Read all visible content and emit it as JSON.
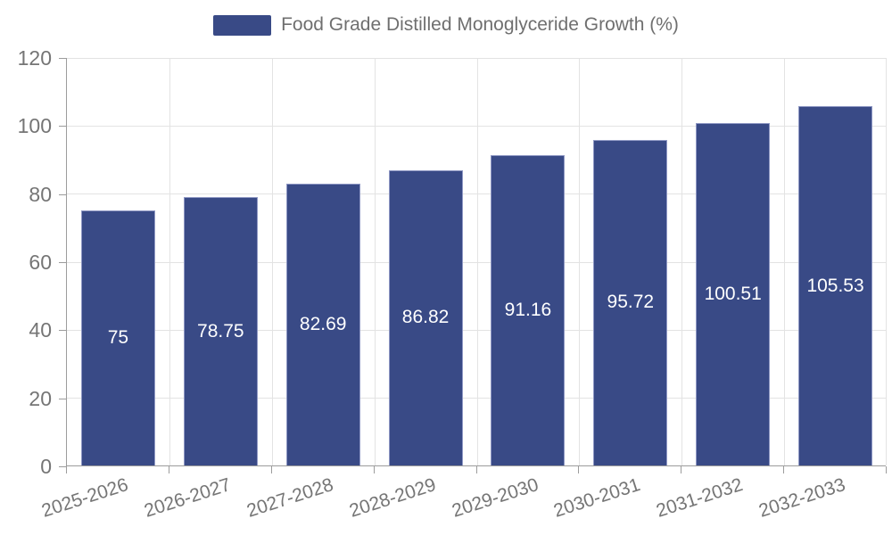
{
  "chart_data": {
    "type": "bar",
    "title": "Food Grade Distilled Monoglyceride Growth (%)",
    "legend": {
      "label": "Food Grade Distilled Monoglyceride Growth (%)",
      "position": "top"
    },
    "categories": [
      "2025-2026",
      "2026-2027",
      "2027-2028",
      "2028-2029",
      "2029-2030",
      "2030-2031",
      "2031-2032",
      "2032-2033"
    ],
    "values": [
      75,
      78.75,
      82.69,
      86.82,
      91.16,
      95.72,
      100.51,
      105.53
    ],
    "value_labels": [
      "75",
      "78.75",
      "82.69",
      "86.82",
      "91.16",
      "95.72",
      "100.51",
      "105.53"
    ],
    "xlabel": "",
    "ylabel": "",
    "ylim": [
      0,
      120
    ],
    "yticks": [
      0,
      20,
      40,
      60,
      80,
      100,
      120
    ],
    "grid": true,
    "colors": {
      "bar": "#394a86",
      "bar_border": "#8f98c4",
      "value_label": "#ffffff",
      "axis": "#9c9c9c",
      "gridline": "#e3e3e3",
      "tick_text": "#757575",
      "legend_text": "#6f6f6f",
      "background": "#ffffff"
    }
  }
}
